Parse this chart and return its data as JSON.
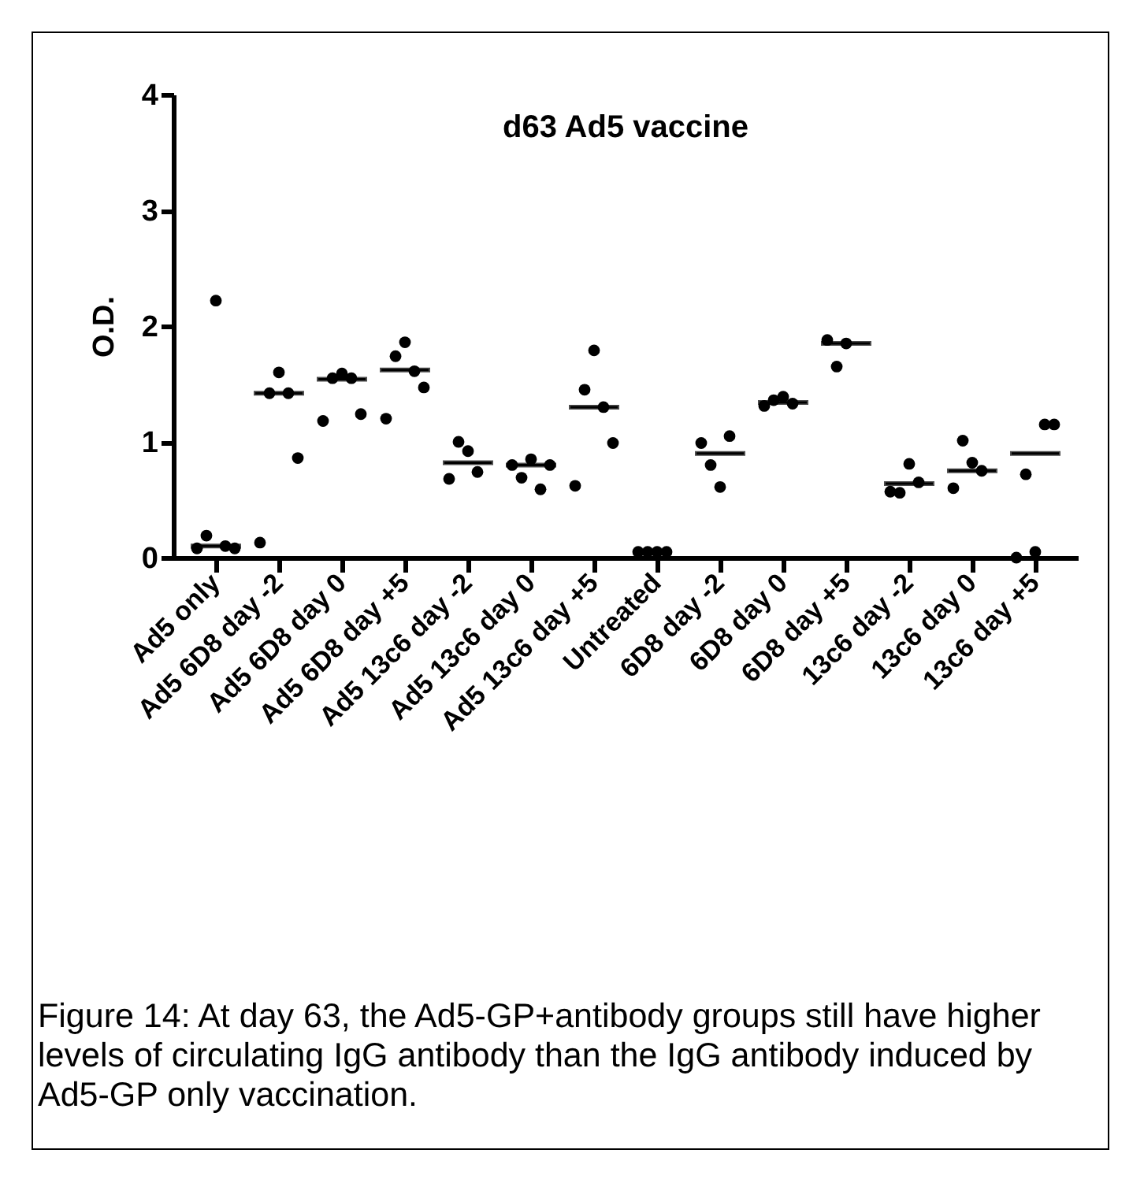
{
  "chart_data": {
    "type": "scatter",
    "title": "d63 Ad5 vaccine",
    "ylabel": "O.D.",
    "categories": [
      "Ad5 only",
      "Ad5 6D8 day -2",
      "Ad5 6D8 day 0",
      "Ad5 6D8 day +5",
      "Ad5 13c6 day -2",
      "Ad5 13c6 day 0",
      "Ad5 13c6 day +5",
      "Untreated",
      "6D8 day -2",
      "6D8 day 0",
      "6D8 day +5",
      "13c6 day -2",
      "13c6 day 0",
      "13c6 day +5"
    ],
    "series": [
      {
        "type": "scatter",
        "color": "#000000",
        "x": [
          "Ad5 only",
          "Ad5 only",
          "Ad5 only",
          "Ad5 only",
          "Ad5 only",
          "Ad5 6D8 day -2",
          "Ad5 6D8 day -2",
          "Ad5 6D8 day -2",
          "Ad5 6D8 day -2",
          "Ad5 6D8 day -2",
          "Ad5 6D8 day 0",
          "Ad5 6D8 day 0",
          "Ad5 6D8 day 0",
          "Ad5 6D8 day 0",
          "Ad5 6D8 day 0",
          "Ad5 6D8 day +5",
          "Ad5 6D8 day +5",
          "Ad5 6D8 day +5",
          "Ad5 6D8 day +5",
          "Ad5 6D8 day +5",
          "Ad5 13c6 day -2",
          "Ad5 13c6 day -2",
          "Ad5 13c6 day -2",
          "Ad5 13c6 day -2",
          "Ad5 13c6 day 0",
          "Ad5 13c6 day 0",
          "Ad5 13c6 day 0",
          "Ad5 13c6 day 0",
          "Ad5 13c6 day 0",
          "Ad5 13c6 day +5",
          "Ad5 13c6 day +5",
          "Ad5 13c6 day +5",
          "Ad5 13c6 day +5",
          "Ad5 13c6 day +5",
          "Untreated",
          "Untreated",
          "Untreated",
          "Untreated",
          "6D8 day -2",
          "6D8 day -2",
          "6D8 day -2",
          "6D8 day -2",
          "6D8 day 0",
          "6D8 day 0",
          "6D8 day 0",
          "6D8 day 0",
          "6D8 day +5",
          "6D8 day +5",
          "6D8 day +5",
          "13c6 day -2",
          "13c6 day -2",
          "13c6 day -2",
          "13c6 day -2",
          "13c6 day 0",
          "13c6 day 0",
          "13c6 day 0",
          "13c6 day 0",
          "13c6 day +5",
          "13c6 day +5",
          "13c6 day +5",
          "13c6 day +5",
          "13c6 day +5"
        ],
        "values": [
          0.08,
          0.19,
          2.22,
          0.1,
          0.08,
          0.13,
          1.42,
          1.6,
          1.42,
          0.86,
          1.18,
          1.55,
          1.59,
          1.55,
          1.24,
          1.2,
          1.74,
          1.86,
          1.61,
          1.47,
          0.68,
          1.0,
          0.92,
          0.74,
          0.8,
          0.69,
          0.85,
          0.59,
          0.8,
          0.62,
          1.45,
          1.79,
          1.3,
          0.99,
          0.05,
          0.05,
          0.05,
          0.05,
          0.99,
          0.8,
          0.61,
          1.05,
          1.31,
          1.36,
          1.39,
          1.33,
          1.88,
          1.65,
          1.85,
          0.57,
          0.56,
          0.81,
          0.65,
          0.6,
          1.01,
          0.82,
          0.75,
          0.0,
          0.72,
          0.05,
          1.15,
          1.15
        ]
      },
      {
        "type": "box",
        "color": "#000000",
        "boxes": [
          {
            "low": 0.1,
            "q1": 0.1,
            "median": 0.1,
            "q3": 0.1,
            "high": 0.1
          },
          {
            "low": 1.42,
            "q1": 1.42,
            "median": 1.42,
            "q3": 1.42,
            "high": 1.42
          },
          {
            "low": 1.54,
            "q1": 1.54,
            "median": 1.54,
            "q3": 1.54,
            "high": 1.54
          },
          {
            "low": 1.62,
            "q1": 1.62,
            "median": 1.62,
            "q3": 1.62,
            "high": 1.62
          },
          {
            "low": 0.82,
            "q1": 0.82,
            "median": 0.82,
            "q3": 0.82,
            "high": 0.82
          },
          {
            "low": 0.8,
            "q1": 0.8,
            "median": 0.8,
            "q3": 0.8,
            "high": 0.8
          },
          {
            "low": 1.3,
            "q1": 1.3,
            "median": 1.3,
            "q3": 1.3,
            "high": 1.3
          },
          null,
          {
            "low": 0.9,
            "q1": 0.9,
            "median": 0.9,
            "q3": 0.9,
            "high": 0.9
          },
          {
            "low": 1.34,
            "q1": 1.34,
            "median": 1.34,
            "q3": 1.34,
            "high": 1.34
          },
          {
            "low": 1.85,
            "q1": 1.85,
            "median": 1.85,
            "q3": 1.85,
            "high": 1.85
          },
          {
            "low": 0.64,
            "q1": 0.64,
            "median": 0.64,
            "q3": 0.64,
            "high": 0.64
          },
          {
            "low": 0.75,
            "q1": 0.75,
            "median": 0.75,
            "q3": 0.75,
            "high": 0.75
          },
          {
            "low": 0.9,
            "q1": 0.9,
            "median": 0.9,
            "q3": 0.9,
            "high": 0.9
          }
        ]
      }
    ],
    "ylim": [
      0,
      4
    ],
    "yticks": [
      0,
      1,
      2,
      3,
      4
    ],
    "grid": false,
    "marker": "circle",
    "annotations": [
      "Figure 14: At day 63, the Ad5-GP+antibody groups still have higher levels of circulating IgG antibody than the IgG antibody induced by Ad5-GP only vaccination."
    ]
  }
}
